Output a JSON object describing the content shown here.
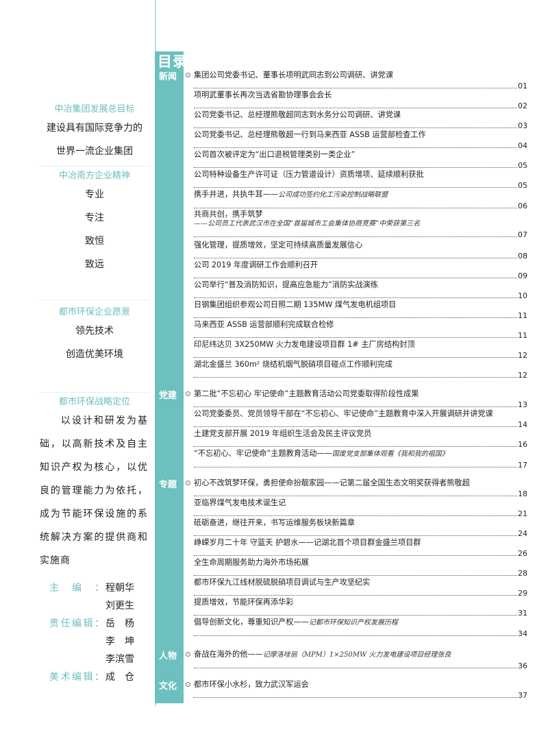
{
  "left": {
    "goal_heading": "中冶集团发展总目标",
    "goal_lines": [
      "建设具有国际竞争力的",
      "世界一流企业集团"
    ],
    "spirit_heading": "中冶南方企业精神",
    "spirit_items": [
      "专业",
      "专注",
      "致恒",
      "致远"
    ],
    "vision_heading": "都市环保企业愿景",
    "vision_items": [
      "领先技术",
      "创造优美环境"
    ],
    "position_heading": "都市环保战略定位",
    "position_text": "以设计和研发为基础，以高新技术及自主知识产权为核心，以优良的管理能力为依托，成为节能环保设施的系统解决方案的提供商和实施商",
    "editors": [
      {
        "role": "主编：",
        "name": "程朝华"
      },
      {
        "role": "",
        "name": "刘更生"
      },
      {
        "role": "责任编辑：",
        "name": "岳　杨"
      },
      {
        "role": "",
        "name": "李　坤"
      },
      {
        "role": "",
        "name": "李滨雪"
      },
      {
        "role": "美术编辑：",
        "name": "成　仓"
      }
    ]
  },
  "toc": {
    "title": "目录",
    "accent_color": "#6cc0be",
    "sections": [
      {
        "label": "新闻",
        "entries": [
          {
            "title": "集团公司党委书记、董事长项明武同志到公司调研、讲党课",
            "page": "01"
          },
          {
            "title": "项明武董事长再次当选省勘协理事会会长",
            "page": "02"
          },
          {
            "title": "公司党委书记、总经理熊敬超同志到水务分公司调研、讲党课",
            "page": "03"
          },
          {
            "title": "公司党委书记、总经理熊敬超一行到马来西亚 ASSB 运营部检查工作",
            "page": "04"
          },
          {
            "title": "公司首次被评定为“出口退税管理类别一类企业”",
            "page": "05"
          },
          {
            "title": "公司特种设备生产许可证（压力管道设计）资质增项、延续顺利获批",
            "page": "05"
          },
          {
            "title": "携手并进，共执牛耳——",
            "subtitle": "公司成功签约化工污染控制战略联盟",
            "page": "06"
          },
          {
            "title": "共商共创，携手筑梦",
            "subtitle": "——公司员工代表武汉市在全国“首届城市工会集体协商竞赛”中荣获第三名",
            "subtitle_newline": true,
            "page": "07"
          },
          {
            "title": "强化管理，提质增效，坚定可持续高质量发展信心",
            "page": "08"
          },
          {
            "title": "公司 2019 年度调研工作会顺利召开",
            "page": "09"
          },
          {
            "title": "公司举行“普及消防知识，提高应急能力”消防实战演练",
            "page": "10"
          },
          {
            "title": "日钢集团组织参观公司日照二期 135MW 煤气发电机组项目",
            "page": "11"
          },
          {
            "title": "马来西亚 ASSB 运营部顺利完成联合检修",
            "page": "11"
          },
          {
            "title": "印尼纬达贝 3X250MW 火力发电建设项目群 1# 主厂房结构封顶",
            "page": "12"
          },
          {
            "title": "湖北金盛兰 360m² 烧结机烟气脱硝项目碰点工作顺利完成",
            "page": "12"
          }
        ]
      },
      {
        "label": "党建",
        "entries": [
          {
            "title": "第二批“不忘初心 牢记使命”主题教育活动公司党委取得阶段性成果",
            "page": "13"
          },
          {
            "title": "公司党委委员、党员领导干部在“不忘初心、牢记使命”主题教育中深入开展调研并讲党课",
            "page": "14"
          },
          {
            "title": "土建党支部开展 2019 年组织生活会及民主评议党员",
            "page": "16"
          },
          {
            "title": "“不忘初心、牢记使命”主题教育活动——",
            "subtitle": "国废党支部集体观看《我和我的祖国》",
            "page": "17"
          }
        ]
      },
      {
        "label": "专题",
        "entries": [
          {
            "title": "初心不改筑梦环保，勇担使命扮靓家园——记第二届全国生态文明奖获得者熊敬超",
            "page": "18"
          },
          {
            "title": "亚临界煤气发电技术诞生记",
            "page": "21"
          },
          {
            "title": "砥砺奋进，继往开来，书写运维服务板块新篇章",
            "page": "24"
          },
          {
            "title": "峥嵘岁月二十年 守蓝天 护碧水——记湖北首个项目群金盛兰项目群",
            "page": "26"
          },
          {
            "title": "全生命周期服务助力海外市场拓展",
            "page": "28"
          },
          {
            "title": "都市环保九江线材脱硫脱硝项目调试与生产攻坚纪实",
            "page": "29"
          },
          {
            "title": "提质增效，节能环保再添华彩",
            "page": "31"
          },
          {
            "title": "倡导创新文化，尊重知识产权——",
            "subtitle": "记都市环保知识产权发展历程",
            "page": "34"
          }
        ]
      },
      {
        "label": "人物",
        "entries": [
          {
            "title": "奋战在海外的他——",
            "subtitle": "记摩洛哇丽（MPM）1×250MW 火力发电建设项目经理张良",
            "page": "36"
          }
        ]
      },
      {
        "label": "文化",
        "entries": [
          {
            "title": "都市环保小水杉，致力武汉军运会",
            "page": "37"
          }
        ]
      }
    ]
  }
}
